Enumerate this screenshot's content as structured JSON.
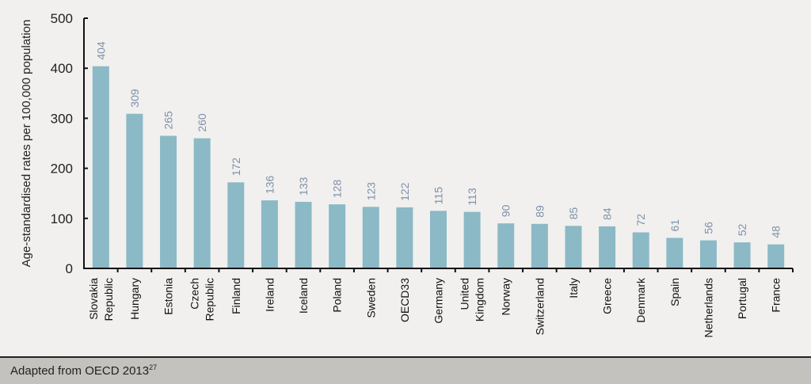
{
  "chart_data": {
    "type": "bar",
    "title": "",
    "xlabel": "",
    "ylabel": "Age-standardised rates per 100,000 population",
    "ylim": [
      0,
      500
    ],
    "yticks": [
      0,
      100,
      200,
      300,
      400,
      500
    ],
    "grid": false,
    "categories": [
      [
        "Slovakia",
        "Republic"
      ],
      [
        "Hungary"
      ],
      [
        "Estonia"
      ],
      [
        "Czech",
        "Republic"
      ],
      [
        "Finland"
      ],
      [
        "Ireland"
      ],
      [
        "Iceland"
      ],
      [
        "Poland"
      ],
      [
        "Sweden"
      ],
      [
        "OECD33"
      ],
      [
        "Germany"
      ],
      [
        "United",
        "Kingdom"
      ],
      [
        "Norway"
      ],
      [
        "Switzerland"
      ],
      [
        "Italy"
      ],
      [
        "Greece"
      ],
      [
        "Denmark"
      ],
      [
        "Spain"
      ],
      [
        "Netherlands"
      ],
      [
        "Portugal"
      ],
      [
        "France"
      ]
    ],
    "values": [
      404,
      309,
      265,
      260,
      172,
      136,
      133,
      128,
      123,
      122,
      115,
      113,
      90,
      89,
      85,
      84,
      72,
      61,
      56,
      52,
      48
    ],
    "colors": {
      "bar": "#8bb9c6",
      "label": "#7e90aa",
      "axis": "#111111"
    }
  },
  "footer": {
    "source": "Adapted from OECD 2013",
    "superscript": "27"
  }
}
